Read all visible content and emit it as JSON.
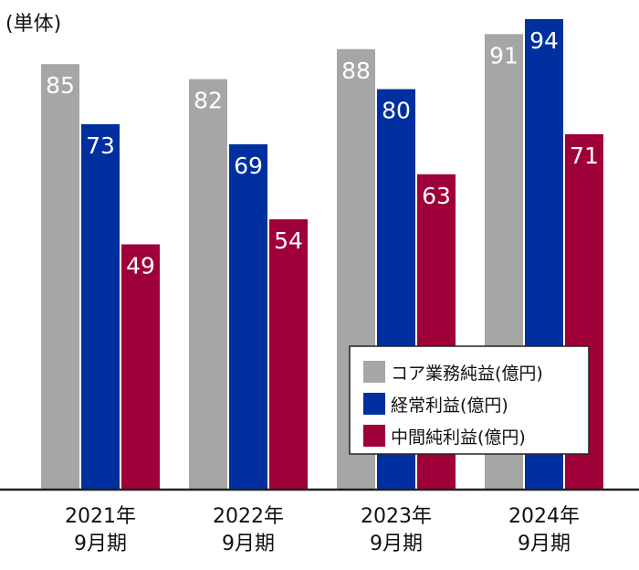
{
  "chart_data": {
    "type": "bar",
    "unit_label": "(単体)",
    "categories": [
      [
        "2021年",
        "9月期"
      ],
      [
        "2022年",
        "9月期"
      ],
      [
        "2023年",
        "9月期"
      ],
      [
        "2024年",
        "9月期"
      ]
    ],
    "series": [
      {
        "name": "コア業務純益(億円)",
        "color": "#a6a6a6",
        "values": [
          85,
          82,
          88,
          91
        ]
      },
      {
        "name": "経常利益(億円)",
        "color": "#0030a0",
        "values": [
          73,
          69,
          80,
          94
        ]
      },
      {
        "name": "中間純利益(億円)",
        "color": "#a0003a",
        "values": [
          49,
          54,
          63,
          71
        ]
      }
    ],
    "ylim": [
      0,
      100
    ],
    "grid": false,
    "legend": "bottom-right",
    "data_labels": true
  }
}
